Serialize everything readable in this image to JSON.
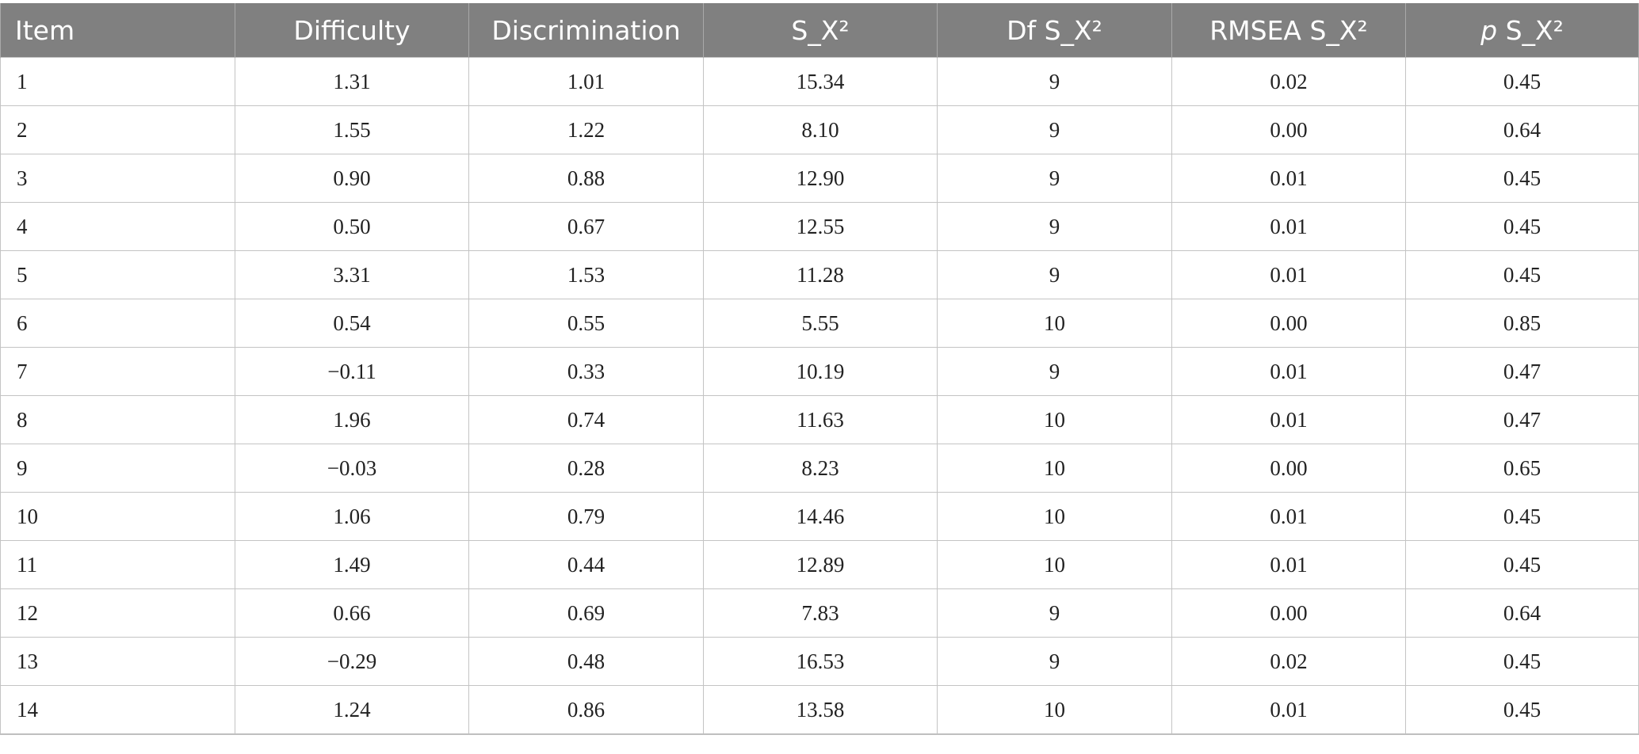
{
  "table": {
    "headers": {
      "item": "Item",
      "difficulty": "Difficulty",
      "discrimination": "Discrimination",
      "sx2": "S_X²",
      "df_prefix": "Df ",
      "df_rest": "S_X²",
      "rmsea_prefix": "RMSEA ",
      "rmsea_rest": "S_X²",
      "p_symbol": "p",
      "p_rest": " S_X²"
    },
    "rows": [
      {
        "item": "1",
        "difficulty": "1.31",
        "discrimination": "1.01",
        "sx2": "15.34",
        "df": "9",
        "rmsea": "0.02",
        "p": "0.45"
      },
      {
        "item": "2",
        "difficulty": "1.55",
        "discrimination": "1.22",
        "sx2": "8.10",
        "df": "9",
        "rmsea": "0.00",
        "p": "0.64"
      },
      {
        "item": "3",
        "difficulty": "0.90",
        "discrimination": "0.88",
        "sx2": "12.90",
        "df": "9",
        "rmsea": "0.01",
        "p": "0.45"
      },
      {
        "item": "4",
        "difficulty": "0.50",
        "discrimination": "0.67",
        "sx2": "12.55",
        "df": "9",
        "rmsea": "0.01",
        "p": "0.45"
      },
      {
        "item": "5",
        "difficulty": "3.31",
        "discrimination": "1.53",
        "sx2": "11.28",
        "df": "9",
        "rmsea": "0.01",
        "p": "0.45"
      },
      {
        "item": "6",
        "difficulty": "0.54",
        "discrimination": "0.55",
        "sx2": "5.55",
        "df": "10",
        "rmsea": "0.00",
        "p": "0.85"
      },
      {
        "item": "7",
        "difficulty": "−0.11",
        "discrimination": "0.33",
        "sx2": "10.19",
        "df": "9",
        "rmsea": "0.01",
        "p": "0.47"
      },
      {
        "item": "8",
        "difficulty": "1.96",
        "discrimination": "0.74",
        "sx2": "11.63",
        "df": "10",
        "rmsea": "0.01",
        "p": "0.47"
      },
      {
        "item": "9",
        "difficulty": "−0.03",
        "discrimination": "0.28",
        "sx2": "8.23",
        "df": "10",
        "rmsea": "0.00",
        "p": "0.65"
      },
      {
        "item": "10",
        "difficulty": "1.06",
        "discrimination": "0.79",
        "sx2": "14.46",
        "df": "10",
        "rmsea": "0.01",
        "p": "0.45"
      },
      {
        "item": "11",
        "difficulty": "1.49",
        "discrimination": "0.44",
        "sx2": "12.89",
        "df": "10",
        "rmsea": "0.01",
        "p": "0.45"
      },
      {
        "item": "12",
        "difficulty": "0.66",
        "discrimination": "0.69",
        "sx2": "7.83",
        "df": "9",
        "rmsea": "0.00",
        "p": "0.64"
      },
      {
        "item": "13",
        "difficulty": "−0.29",
        "discrimination": "0.48",
        "sx2": "16.53",
        "df": "9",
        "rmsea": "0.02",
        "p": "0.45"
      },
      {
        "item": "14",
        "difficulty": "1.24",
        "discrimination": "0.86",
        "sx2": "13.58",
        "df": "10",
        "rmsea": "0.01",
        "p": "0.45"
      }
    ]
  }
}
